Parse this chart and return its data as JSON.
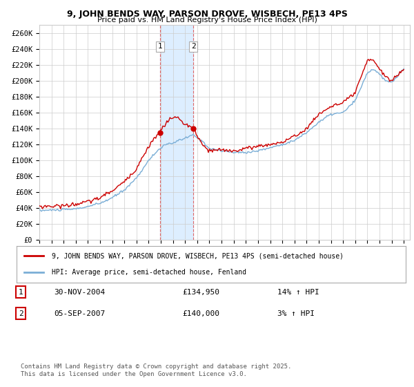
{
  "title": "9, JOHN BENDS WAY, PARSON DROVE, WISBECH, PE13 4PS",
  "subtitle": "Price paid vs. HM Land Registry's House Price Index (HPI)",
  "ylabel_ticks": [
    "£0",
    "£20K",
    "£40K",
    "£60K",
    "£80K",
    "£100K",
    "£120K",
    "£140K",
    "£160K",
    "£180K",
    "£200K",
    "£220K",
    "£240K",
    "£260K"
  ],
  "ytick_values": [
    0,
    20000,
    40000,
    60000,
    80000,
    100000,
    120000,
    140000,
    160000,
    180000,
    200000,
    220000,
    240000,
    260000
  ],
  "ylim": [
    0,
    270000
  ],
  "x_start_year": 1995,
  "x_end_year": 2025,
  "legend_line1": "9, JOHN BENDS WAY, PARSON DROVE, WISBECH, PE13 4PS (semi-detached house)",
  "legend_line2": "HPI: Average price, semi-detached house, Fenland",
  "sale1_date": "30-NOV-2004",
  "sale1_price": 134950,
  "sale1_hpi": "14% ↑ HPI",
  "sale1_year": 2004.92,
  "sale1_value": 134950,
  "sale2_date": "05-SEP-2007",
  "sale2_price": 140000,
  "sale2_hpi": "3% ↑ HPI",
  "sale2_year": 2007.67,
  "sale2_value": 140000,
  "copyright": "Contains HM Land Registry data © Crown copyright and database right 2025.\nThis data is licensed under the Open Government Licence v3.0.",
  "line_color_red": "#cc0000",
  "line_color_blue": "#7aaed6",
  "highlight_color": "#ddeeff",
  "vline_color": "#dd6666",
  "grid_color": "#cccccc",
  "bg_color": "#ffffff"
}
